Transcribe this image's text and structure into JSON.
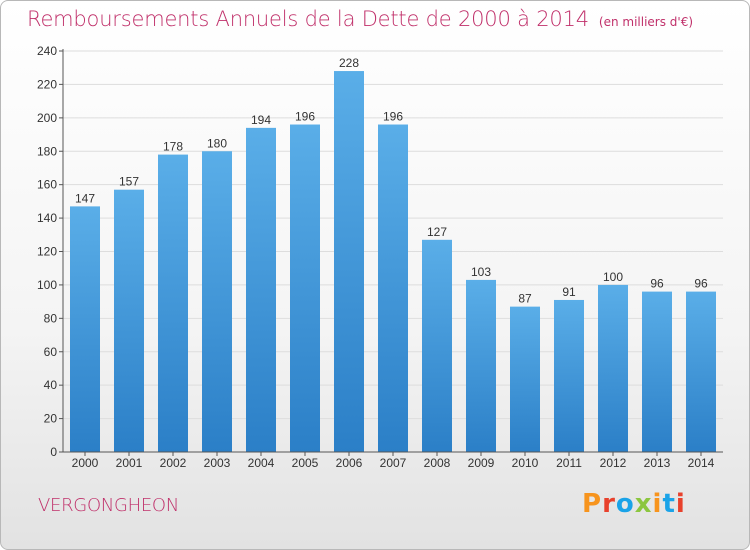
{
  "header": {
    "title": "Remboursements Annuels de la Dette de 2000 à 2014",
    "unit": "(en milliers d'€)"
  },
  "footer": {
    "commune": "VERGONGHEON",
    "brand": "Proxiti",
    "brand_colors": [
      "#f7941d",
      "#e8412c",
      "#1aa3e8",
      "#8cc63f",
      "#f7941d",
      "#1aa3e8",
      "#e8412c"
    ]
  },
  "colors": {
    "title": "#c0306a",
    "bar_top": "#5aaee8",
    "bar_bottom": "#2b7fc7",
    "grid": "#dddddd",
    "axis": "#555555"
  },
  "chart_data": {
    "type": "bar",
    "title": "Remboursements Annuels de la Dette de 2000 à 2014",
    "unit": "(en milliers d'€)",
    "categories": [
      "2000",
      "2001",
      "2002",
      "2003",
      "2004",
      "2005",
      "2006",
      "2007",
      "2008",
      "2009",
      "2010",
      "2011",
      "2012",
      "2013",
      "2014"
    ],
    "values": [
      147,
      157,
      178,
      180,
      194,
      196,
      228,
      196,
      127,
      103,
      87,
      91,
      100,
      96,
      96
    ],
    "ylim": [
      0,
      240
    ],
    "yticks": [
      0,
      20,
      40,
      60,
      80,
      100,
      120,
      140,
      160,
      180,
      200,
      220,
      240
    ],
    "grid": true,
    "data_labels": true
  }
}
